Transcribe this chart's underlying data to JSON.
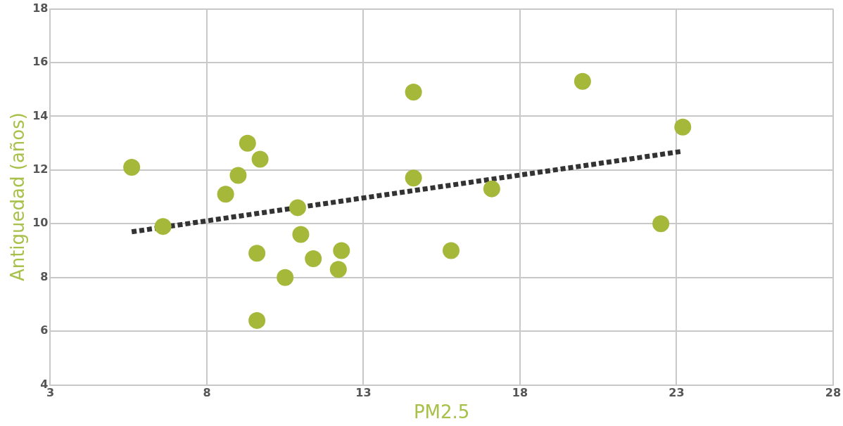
{
  "chart_data": {
    "type": "scatter",
    "xlabel": "PM2.5",
    "ylabel": "Antiguedad (años)",
    "xlim": [
      3,
      28
    ],
    "xticks": [
      3,
      8,
      13,
      18,
      23,
      28
    ],
    "ylim": [
      4,
      18
    ],
    "yticks": [
      4,
      6,
      8,
      10,
      12,
      14,
      16,
      18
    ],
    "grid": true,
    "legend": false,
    "marker": "circle",
    "series": [
      {
        "color": "#a5b83a",
        "x": [
          5.6,
          6.6,
          8.6,
          9.0,
          9.3,
          9.7,
          9.6,
          9.6,
          10.5,
          10.9,
          11.0,
          11.4,
          12.2,
          12.3,
          14.6,
          14.6,
          15.8,
          17.1,
          20.0,
          22.5,
          23.2
        ],
        "values": [
          12.1,
          9.9,
          11.1,
          11.8,
          13.0,
          12.4,
          8.9,
          6.4,
          8.0,
          10.6,
          9.6,
          8.7,
          8.3,
          9.0,
          14.9,
          11.7,
          9.0,
          11.3,
          15.3,
          10.0,
          13.6
        ]
      },
      {
        "type": "line",
        "color": "#333333",
        "line_style": "dotted",
        "marker": "none",
        "x": [
          5.6,
          23.2
        ],
        "values": [
          9.7,
          12.7
        ]
      }
    ]
  }
}
